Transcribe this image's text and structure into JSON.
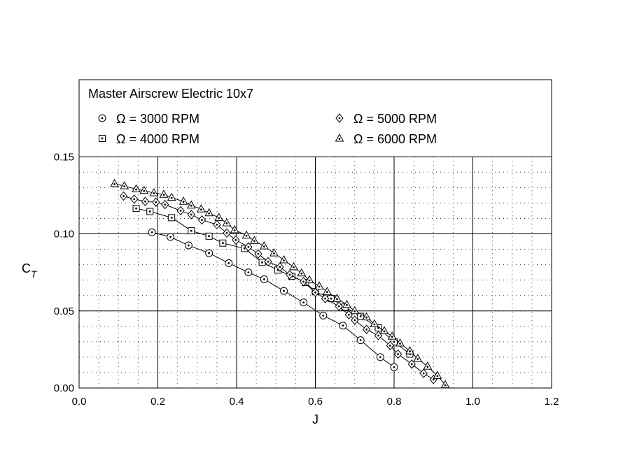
{
  "chart_data": {
    "type": "line",
    "title": "Master Airscrew Electric 10x7",
    "xlabel": "J",
    "ylabel": "C",
    "ylabel_sub": "T",
    "xlim": [
      0.0,
      1.2
    ],
    "ylim": [
      0.0,
      0.2
    ],
    "x_ticks": [
      "0.0",
      "0.2",
      "0.4",
      "0.6",
      "0.8",
      "1.0",
      "1.2"
    ],
    "y_ticks": [
      "0.00",
      "0.05",
      "0.10",
      "0.15"
    ],
    "grid": true,
    "legend_position": "top-inside",
    "series": [
      {
        "name": "Ω = 3000 RPM",
        "marker": "circle",
        "x": [
          0.185,
          0.232,
          0.278,
          0.33,
          0.38,
          0.43,
          0.47,
          0.52,
          0.57,
          0.62,
          0.67,
          0.715,
          0.765,
          0.8
        ],
        "y": [
          0.101,
          0.098,
          0.0925,
          0.0875,
          0.081,
          0.075,
          0.0705,
          0.063,
          0.0555,
          0.047,
          0.0405,
          0.031,
          0.02,
          0.0135
        ]
      },
      {
        "name": "Ω = 4000 RPM",
        "marker": "square",
        "x": [
          0.145,
          0.18,
          0.235,
          0.285,
          0.33,
          0.365,
          0.42,
          0.465,
          0.505,
          0.54,
          0.575,
          0.6,
          0.64,
          0.675,
          0.715,
          0.76,
          0.8,
          0.84
        ],
        "y": [
          0.1165,
          0.1145,
          0.1105,
          0.102,
          0.0985,
          0.094,
          0.0905,
          0.0815,
          0.0765,
          0.0725,
          0.0685,
          0.0625,
          0.058,
          0.0525,
          0.0465,
          0.039,
          0.03,
          0.022
        ]
      },
      {
        "name": "Ω = 5000 RPM",
        "marker": "diamond",
        "x": [
          0.113,
          0.14,
          0.168,
          0.195,
          0.218,
          0.258,
          0.285,
          0.312,
          0.35,
          0.375,
          0.398,
          0.43,
          0.455,
          0.48,
          0.51,
          0.535,
          0.57,
          0.6,
          0.625,
          0.66,
          0.685,
          0.7,
          0.73,
          0.76,
          0.79,
          0.81,
          0.845,
          0.875,
          0.9
        ],
        "y": [
          0.1245,
          0.1225,
          0.121,
          0.1205,
          0.119,
          0.115,
          0.1125,
          0.109,
          0.106,
          0.1005,
          0.096,
          0.0915,
          0.087,
          0.082,
          0.0785,
          0.0735,
          0.069,
          0.062,
          0.058,
          0.053,
          0.0475,
          0.044,
          0.038,
          0.034,
          0.0275,
          0.022,
          0.0155,
          0.0095,
          0.0055
        ]
      },
      {
        "name": "Ω = 6000 RPM",
        "marker": "triangle",
        "x": [
          0.09,
          0.115,
          0.145,
          0.165,
          0.19,
          0.215,
          0.235,
          0.265,
          0.285,
          0.31,
          0.33,
          0.355,
          0.375,
          0.395,
          0.425,
          0.445,
          0.47,
          0.495,
          0.52,
          0.545,
          0.565,
          0.585,
          0.61,
          0.63,
          0.655,
          0.68,
          0.7,
          0.73,
          0.75,
          0.775,
          0.795,
          0.815,
          0.84,
          0.86,
          0.885,
          0.91,
          0.93
        ],
        "y": [
          0.1325,
          0.131,
          0.129,
          0.128,
          0.1265,
          0.1255,
          0.1235,
          0.121,
          0.1185,
          0.116,
          0.1135,
          0.1105,
          0.107,
          0.1025,
          0.099,
          0.0955,
          0.092,
          0.0875,
          0.083,
          0.0785,
          0.0745,
          0.07,
          0.066,
          0.0625,
          0.058,
          0.054,
          0.05,
          0.046,
          0.0415,
          0.037,
          0.0335,
          0.029,
          0.024,
          0.019,
          0.014,
          0.008,
          0.002
        ]
      }
    ]
  }
}
